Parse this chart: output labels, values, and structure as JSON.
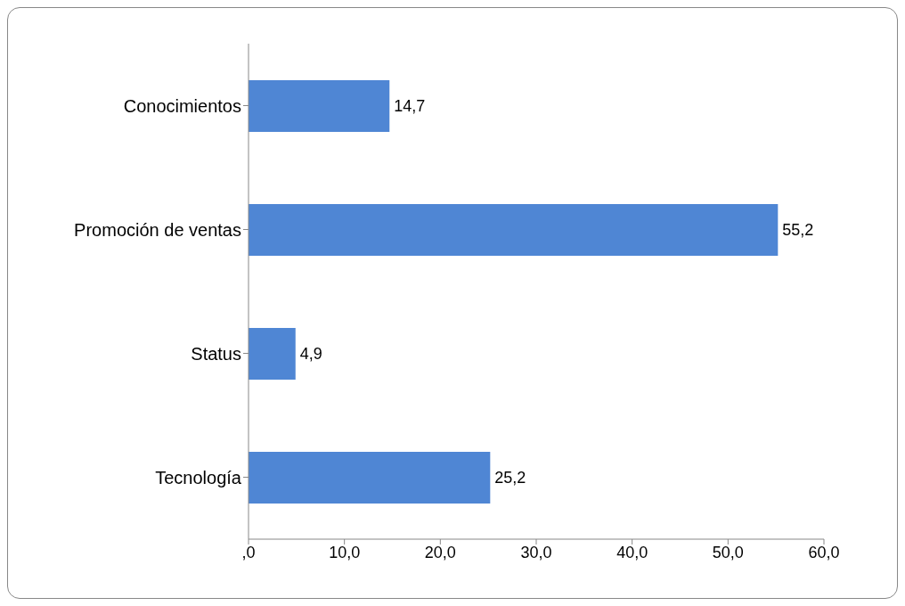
{
  "chart_data": {
    "type": "bar",
    "orientation": "horizontal",
    "categories": [
      "Conocimientos",
      "Promoción de ventas",
      "Status",
      "Tecnología"
    ],
    "values": [
      14.7,
      55.2,
      4.9,
      25.2
    ],
    "color": "#4f86d4",
    "value_labels": [
      "14,7",
      "55,2",
      "4,9",
      "25,2"
    ],
    "xlim": [
      0,
      60
    ],
    "xticks": [
      {
        "value": 0,
        "label": ",0"
      },
      {
        "value": 10,
        "label": "10,0"
      },
      {
        "value": 20,
        "label": "20,0"
      },
      {
        "value": 30,
        "label": "30,0"
      },
      {
        "value": 40,
        "label": "40,0"
      },
      {
        "value": 50,
        "label": "50,0"
      },
      {
        "value": 60,
        "label": "60,0"
      }
    ]
  }
}
